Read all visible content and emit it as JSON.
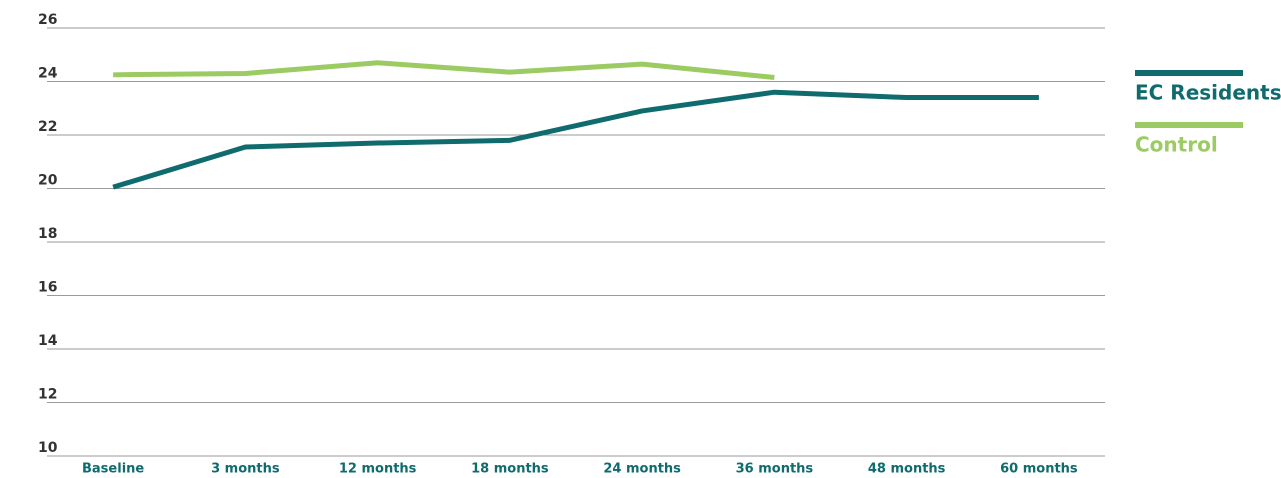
{
  "chart_data": {
    "type": "line",
    "categories": [
      "Baseline",
      "3 months",
      "12 months",
      "18 months",
      "24 months",
      "36 months",
      "48 months",
      "60 months"
    ],
    "series": [
      {
        "name": "EC Residents",
        "color": "#0f6b6e",
        "values": [
          20.05,
          21.55,
          21.7,
          21.8,
          22.9,
          23.6,
          23.4,
          23.4
        ]
      },
      {
        "name": "Control",
        "color": "#9bcb62",
        "values": [
          24.25,
          24.3,
          24.7,
          24.35,
          24.65,
          24.15,
          null,
          null
        ]
      }
    ],
    "ylim": [
      10,
      26
    ],
    "yticks": [
      10,
      12,
      14,
      16,
      18,
      20,
      22,
      24,
      26
    ],
    "grid": true,
    "legend": "right"
  }
}
